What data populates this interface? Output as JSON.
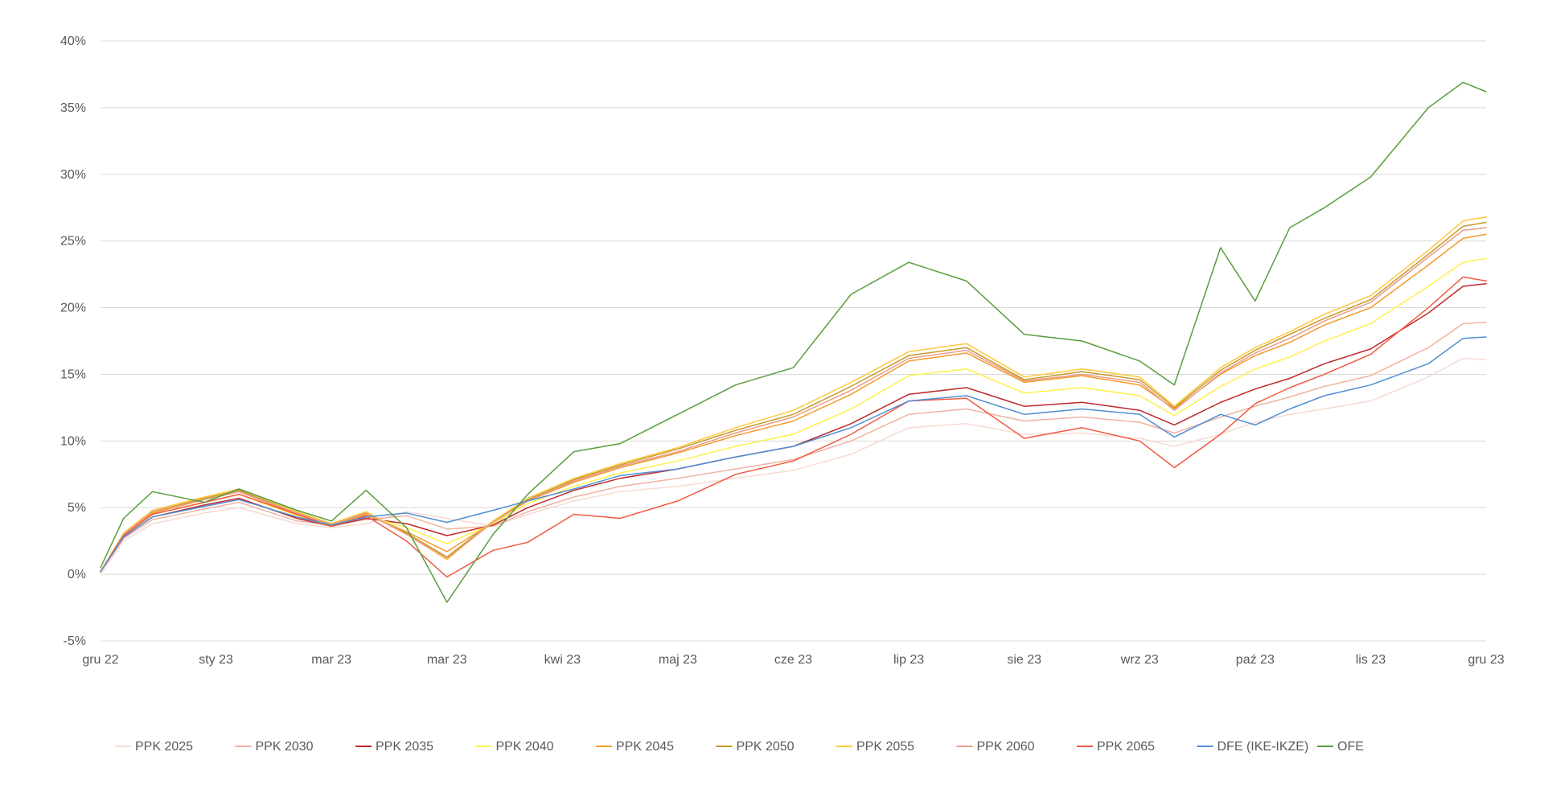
{
  "chart_data": {
    "type": "line",
    "title": "",
    "xlabel": "",
    "ylabel": "",
    "x_tick_labels": [
      "gru 22",
      "sty 23",
      "mar 23",
      "mar 23",
      "kwi 23",
      "maj 23",
      "cze 23",
      "lip 23",
      "sie 23",
      "wrz 23",
      "paź 23",
      "lis 23",
      "gru 23"
    ],
    "y_tick_labels": [
      "-5%",
      "0%",
      "5%",
      "10%",
      "15%",
      "20%",
      "25%",
      "30%",
      "35%",
      "40%"
    ],
    "y_ticks": [
      -5,
      0,
      5,
      10,
      15,
      20,
      25,
      30,
      35,
      40
    ],
    "ylim": [
      -5,
      40
    ],
    "xlim": [
      0,
      12
    ],
    "grid": "horizontal",
    "legend_position": "bottom",
    "series": [
      {
        "name": "PPK 2025",
        "color": "#f8d9d3",
        "x": [
          0,
          0.2,
          0.45,
          0.9,
          1.2,
          1.7,
          2.0,
          2.3,
          2.65,
          3.0,
          3.4,
          3.7,
          4.1,
          4.5,
          5.0,
          5.5,
          6.0,
          6.5,
          7.0,
          7.5,
          8.0,
          8.5,
          9.0,
          9.3,
          9.7,
          10.0,
          10.3,
          10.6,
          11.0,
          11.5,
          11.8,
          12.0
        ],
        "y": [
          0,
          2.5,
          3.8,
          4.6,
          5.0,
          3.8,
          3.5,
          3.8,
          4.7,
          4.2,
          3.6,
          4.5,
          5.5,
          6.2,
          6.6,
          7.2,
          7.8,
          9.0,
          11.0,
          11.3,
          10.5,
          10.6,
          10.2,
          9.6,
          10.5,
          11.4,
          12.0,
          12.4,
          13.0,
          14.8,
          16.2,
          16.1
        ]
      },
      {
        "name": "PPK 2030",
        "color": "#f0b39f",
        "x": [
          0,
          0.2,
          0.45,
          0.9,
          1.2,
          1.7,
          2.0,
          2.3,
          2.65,
          3.0,
          3.4,
          3.7,
          4.1,
          4.5,
          5.0,
          5.5,
          6.0,
          6.5,
          7.0,
          7.5,
          8.0,
          8.5,
          9.0,
          9.3,
          9.7,
          10.0,
          10.3,
          10.6,
          11.0,
          11.5,
          11.8,
          12.0
        ],
        "y": [
          0.2,
          2.7,
          4.1,
          4.9,
          5.4,
          4.0,
          3.7,
          4.1,
          4.4,
          3.4,
          3.6,
          4.7,
          5.8,
          6.6,
          7.2,
          7.9,
          8.6,
          10.0,
          12.0,
          12.4,
          11.5,
          11.8,
          11.4,
          10.6,
          11.8,
          12.6,
          13.3,
          14.1,
          14.9,
          17.0,
          18.8,
          18.9
        ]
      },
      {
        "name": "PPK 2035",
        "color": "#c0282d",
        "x": [
          0,
          0.2,
          0.45,
          0.9,
          1.2,
          1.7,
          2.0,
          2.3,
          2.65,
          3.0,
          3.4,
          3.7,
          4.1,
          4.5,
          5.0,
          5.5,
          6.0,
          6.5,
          7.0,
          7.5,
          8.0,
          8.5,
          9.0,
          9.3,
          9.7,
          10.0,
          10.3,
          10.6,
          11.0,
          11.5,
          11.8,
          12.0
        ],
        "y": [
          0.2,
          2.8,
          4.3,
          5.2,
          5.7,
          4.2,
          3.6,
          4.2,
          3.8,
          2.9,
          3.7,
          5.0,
          6.3,
          7.2,
          7.9,
          8.8,
          9.6,
          11.3,
          13.5,
          14.0,
          12.6,
          12.9,
          12.3,
          11.2,
          12.9,
          13.9,
          14.7,
          15.8,
          16.9,
          19.6,
          21.6,
          21.8
        ]
      },
      {
        "name": "PPK 2040",
        "color": "#fff04a",
        "x": [
          0,
          0.2,
          0.45,
          0.9,
          1.2,
          1.7,
          2.0,
          2.3,
          2.65,
          3.0,
          3.4,
          3.7,
          4.1,
          4.5,
          5.0,
          5.5,
          6.0,
          6.5,
          7.0,
          7.5,
          8.0,
          8.5,
          9.0,
          9.3,
          9.7,
          10.0,
          10.3,
          10.6,
          11.0,
          11.5,
          11.8,
          12.0
        ],
        "y": [
          0.2,
          2.9,
          4.5,
          5.4,
          6.0,
          4.4,
          3.6,
          4.4,
          3.5,
          2.3,
          3.8,
          5.3,
          6.6,
          7.6,
          8.5,
          9.6,
          10.5,
          12.4,
          14.9,
          15.4,
          13.6,
          14.0,
          13.4,
          11.9,
          14.1,
          15.4,
          16.3,
          17.5,
          18.8,
          21.6,
          23.4,
          23.7
        ]
      },
      {
        "name": "PPK 2045",
        "color": "#f39a2c",
        "x": [
          0,
          0.2,
          0.45,
          0.9,
          1.2,
          1.7,
          2.0,
          2.3,
          2.65,
          3.0,
          3.4,
          3.7,
          4.1,
          4.5,
          5.0,
          5.5,
          6.0,
          6.5,
          7.0,
          7.5,
          8.0,
          8.5,
          9.0,
          9.3,
          9.7,
          10.0,
          10.3,
          10.6,
          11.0,
          11.5,
          11.8,
          12.0
        ],
        "y": [
          0.2,
          3.0,
          4.6,
          5.6,
          6.2,
          4.5,
          3.7,
          4.5,
          3.2,
          1.7,
          3.9,
          5.5,
          6.9,
          8.0,
          9.1,
          10.4,
          11.5,
          13.5,
          16.0,
          16.6,
          14.4,
          14.9,
          14.2,
          12.4,
          15.0,
          16.4,
          17.4,
          18.7,
          20.0,
          23.2,
          25.2,
          25.5
        ]
      },
      {
        "name": "PPK 2050",
        "color": "#c59a2a",
        "x": [
          0,
          0.2,
          0.45,
          0.9,
          1.2,
          1.7,
          2.0,
          2.3,
          2.65,
          3.0,
          3.4,
          3.7,
          4.1,
          4.5,
          5.0,
          5.5,
          6.0,
          6.5,
          7.0,
          7.5,
          8.0,
          8.5,
          9.0,
          9.3,
          9.7,
          10.0,
          10.3,
          10.6,
          11.0,
          11.5,
          11.8,
          12.0
        ],
        "y": [
          0.2,
          3.0,
          4.7,
          5.7,
          6.3,
          4.6,
          3.8,
          4.6,
          3.1,
          1.3,
          4.0,
          5.6,
          7.1,
          8.2,
          9.4,
          10.8,
          12.0,
          14.1,
          16.4,
          17.0,
          14.6,
          15.2,
          14.6,
          12.5,
          15.3,
          16.8,
          18.0,
          19.2,
          20.6,
          24.0,
          26.1,
          26.4
        ]
      },
      {
        "name": "PPK 2055",
        "color": "#ffc83d",
        "x": [
          0,
          0.2,
          0.45,
          0.9,
          1.2,
          1.7,
          2.0,
          2.3,
          2.65,
          3.0,
          3.4,
          3.7,
          4.1,
          4.5,
          5.0,
          5.5,
          6.0,
          6.5,
          7.0,
          7.5,
          8.0,
          8.5,
          9.0,
          9.3,
          9.7,
          10.0,
          10.3,
          10.6,
          11.0,
          11.5,
          11.8,
          12.0
        ],
        "y": [
          0.2,
          3.1,
          4.8,
          5.8,
          6.4,
          4.7,
          3.8,
          4.7,
          3.0,
          1.1,
          4.0,
          5.7,
          7.2,
          8.3,
          9.5,
          11.0,
          12.3,
          14.4,
          16.7,
          17.3,
          14.8,
          15.4,
          14.8,
          12.6,
          15.5,
          17.0,
          18.2,
          19.5,
          20.9,
          24.3,
          26.5,
          26.8
        ]
      },
      {
        "name": "PPK 2060",
        "color": "#ea9c8a",
        "x": [
          0,
          0.2,
          0.45,
          0.9,
          1.2,
          1.7,
          2.0,
          2.3,
          2.65,
          3.0,
          3.4,
          3.7,
          4.1,
          4.5,
          5.0,
          5.5,
          6.0,
          6.5,
          7.0,
          7.5,
          8.0,
          8.5,
          9.0,
          9.3,
          9.7,
          10.0,
          10.3,
          10.6,
          11.0,
          11.5,
          11.8,
          12.0
        ],
        "y": [
          0.2,
          3.0,
          4.7,
          5.6,
          6.2,
          4.6,
          3.7,
          4.6,
          3.0,
          1.2,
          3.9,
          5.5,
          7.0,
          8.1,
          9.2,
          10.6,
          11.8,
          13.8,
          16.2,
          16.8,
          14.5,
          15.0,
          14.4,
          12.3,
          15.1,
          16.6,
          17.7,
          19.0,
          20.4,
          23.8,
          25.8,
          26.0
        ]
      },
      {
        "name": "PPK 2065",
        "color": "#f05a40",
        "x": [
          0,
          0.2,
          0.45,
          0.9,
          1.2,
          1.7,
          2.0,
          2.3,
          2.65,
          3.0,
          3.4,
          3.7,
          4.1,
          4.5,
          5.0,
          5.5,
          6.0,
          6.5,
          7.0,
          7.5,
          8.0,
          8.5,
          9.0,
          9.3,
          9.7,
          10.0,
          10.3,
          10.6,
          11.0,
          11.5,
          11.8,
          12.0
        ],
        "y": [
          0.2,
          2.9,
          4.5,
          5.4,
          6.0,
          4.5,
          3.6,
          4.4,
          2.5,
          -0.2,
          1.8,
          2.4,
          4.5,
          4.2,
          5.5,
          7.5,
          8.5,
          10.5,
          13.0,
          13.2,
          10.2,
          11.0,
          10.0,
          8.0,
          10.5,
          12.8,
          14.0,
          15.0,
          16.5,
          20.0,
          22.3,
          22.0
        ]
      },
      {
        "name": "DFE (IKE-IKZE)",
        "color": "#4f8ed4",
        "x": [
          0,
          0.2,
          0.45,
          0.9,
          1.2,
          1.7,
          2.0,
          2.3,
          2.65,
          3.0,
          3.4,
          3.7,
          4.1,
          4.5,
          5.0,
          5.5,
          6.0,
          6.5,
          7.0,
          7.5,
          8.0,
          8.5,
          9.0,
          9.3,
          9.7,
          10.0,
          10.3,
          10.6,
          11.0,
          11.5,
          11.8,
          12.0
        ],
        "y": [
          0.2,
          2.8,
          4.3,
          5.1,
          5.6,
          4.3,
          3.7,
          4.3,
          4.6,
          3.9,
          4.8,
          5.5,
          6.4,
          7.4,
          7.9,
          8.8,
          9.6,
          11.0,
          13.0,
          13.4,
          12.0,
          12.4,
          12.0,
          10.3,
          12.0,
          11.2,
          12.4,
          13.4,
          14.2,
          15.8,
          17.7,
          17.8
        ]
      },
      {
        "name": "OFE",
        "color": "#5a9e3c",
        "x": [
          0,
          0.2,
          0.45,
          0.9,
          1.2,
          1.7,
          2.0,
          2.3,
          2.65,
          3.0,
          3.4,
          3.7,
          4.1,
          4.5,
          5.0,
          5.5,
          6.0,
          6.5,
          7.0,
          7.5,
          8.0,
          8.5,
          9.0,
          9.3,
          9.7,
          10.0,
          10.3,
          10.6,
          11.0,
          11.5,
          11.8,
          12.0
        ],
        "y": [
          0.5,
          4.2,
          6.2,
          5.4,
          6.4,
          4.8,
          4.0,
          6.3,
          3.5,
          -2.1,
          3.0,
          6.0,
          9.2,
          9.8,
          12.0,
          14.2,
          15.5,
          21.0,
          23.4,
          22.0,
          18.0,
          17.5,
          16.0,
          14.2,
          24.5,
          20.5,
          26.0,
          27.5,
          29.8,
          35.0,
          36.9,
          36.2
        ]
      }
    ]
  }
}
